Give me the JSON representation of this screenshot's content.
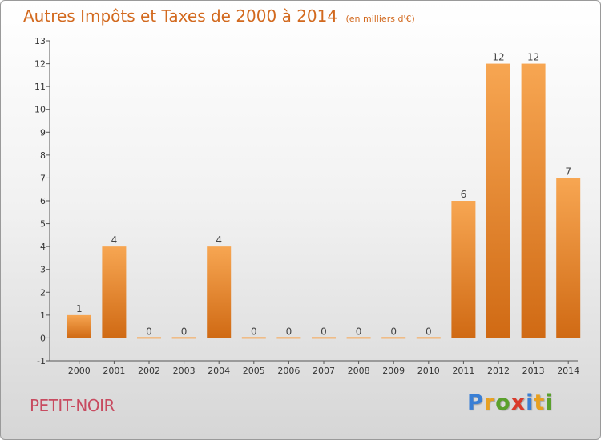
{
  "header": {
    "title": "Autres Impôts et Taxes de 2000 à 2014",
    "subtitle": "(en milliers d'€)"
  },
  "footer": {
    "place": "PETIT-NOIR",
    "logo": [
      "P",
      "r",
      "o",
      "x",
      "i",
      "t",
      "i"
    ],
    "logo_colors": [
      "#3a7fd5",
      "#e8a020",
      "#5aa02c",
      "#d93a2b",
      "#3a7fd5",
      "#e8a020",
      "#5aa02c"
    ]
  },
  "colors": {
    "accent": "#d2691e",
    "bar_light": "#f7a652",
    "bar_dark": "#d06a14",
    "place": "#c84b60"
  },
  "chart_data": {
    "type": "bar",
    "title": "Autres Impôts et Taxes de 2000 à 2014",
    "subtitle": "(en milliers d'€)",
    "categories": [
      "2000",
      "2001",
      "2002",
      "2003",
      "2004",
      "2005",
      "2006",
      "2007",
      "2008",
      "2009",
      "2010",
      "2011",
      "2012",
      "2013",
      "2014"
    ],
    "values": [
      1,
      4,
      0,
      0,
      4,
      0,
      0,
      0,
      0,
      0,
      0,
      6,
      12,
      12,
      7
    ],
    "ylim": [
      -1,
      13
    ],
    "yticks": [
      -1,
      0,
      1,
      2,
      3,
      4,
      5,
      6,
      7,
      8,
      9,
      10,
      11,
      12,
      13
    ],
    "xlabel": "",
    "ylabel": "",
    "grid": false,
    "data_labels": true
  }
}
